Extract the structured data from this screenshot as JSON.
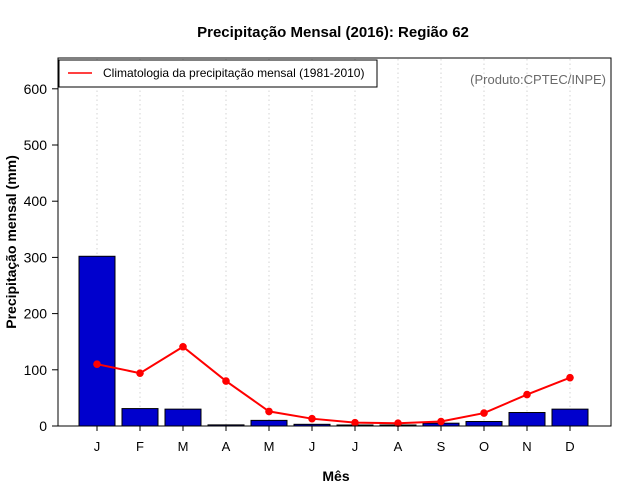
{
  "chart_data": {
    "type": "bar",
    "title": "Precipitação Mensal (2016): Região 62",
    "xlabel": "Mês",
    "ylabel": "Precipitação mensal (mm)",
    "categories": [
      "J",
      "F",
      "M",
      "A",
      "M",
      "J",
      "J",
      "A",
      "S",
      "O",
      "N",
      "D"
    ],
    "ylim": [
      0,
      650
    ],
    "yticks": [
      0,
      100,
      200,
      300,
      400,
      500,
      600
    ],
    "grid": "vertical-dotted",
    "series": [
      {
        "name": "Precipitação mensal (2016)",
        "kind": "bar",
        "color": "#0000cd",
        "values": [
          302,
          31,
          30,
          2,
          10,
          3,
          1,
          0,
          5,
          8,
          24,
          30
        ]
      },
      {
        "name": "Climatologia da precipitação mensal (1981-2010)",
        "kind": "line",
        "color": "#ff0000",
        "values": [
          110,
          94,
          141,
          80,
          26,
          13,
          6,
          5,
          8,
          23,
          56,
          86
        ]
      }
    ],
    "legend": {
      "position": "top-left",
      "entries": [
        "Climatologia da precipitação mensal (1981-2010)"
      ]
    },
    "annotation": "(Produto:CPTEC/INPE)"
  }
}
